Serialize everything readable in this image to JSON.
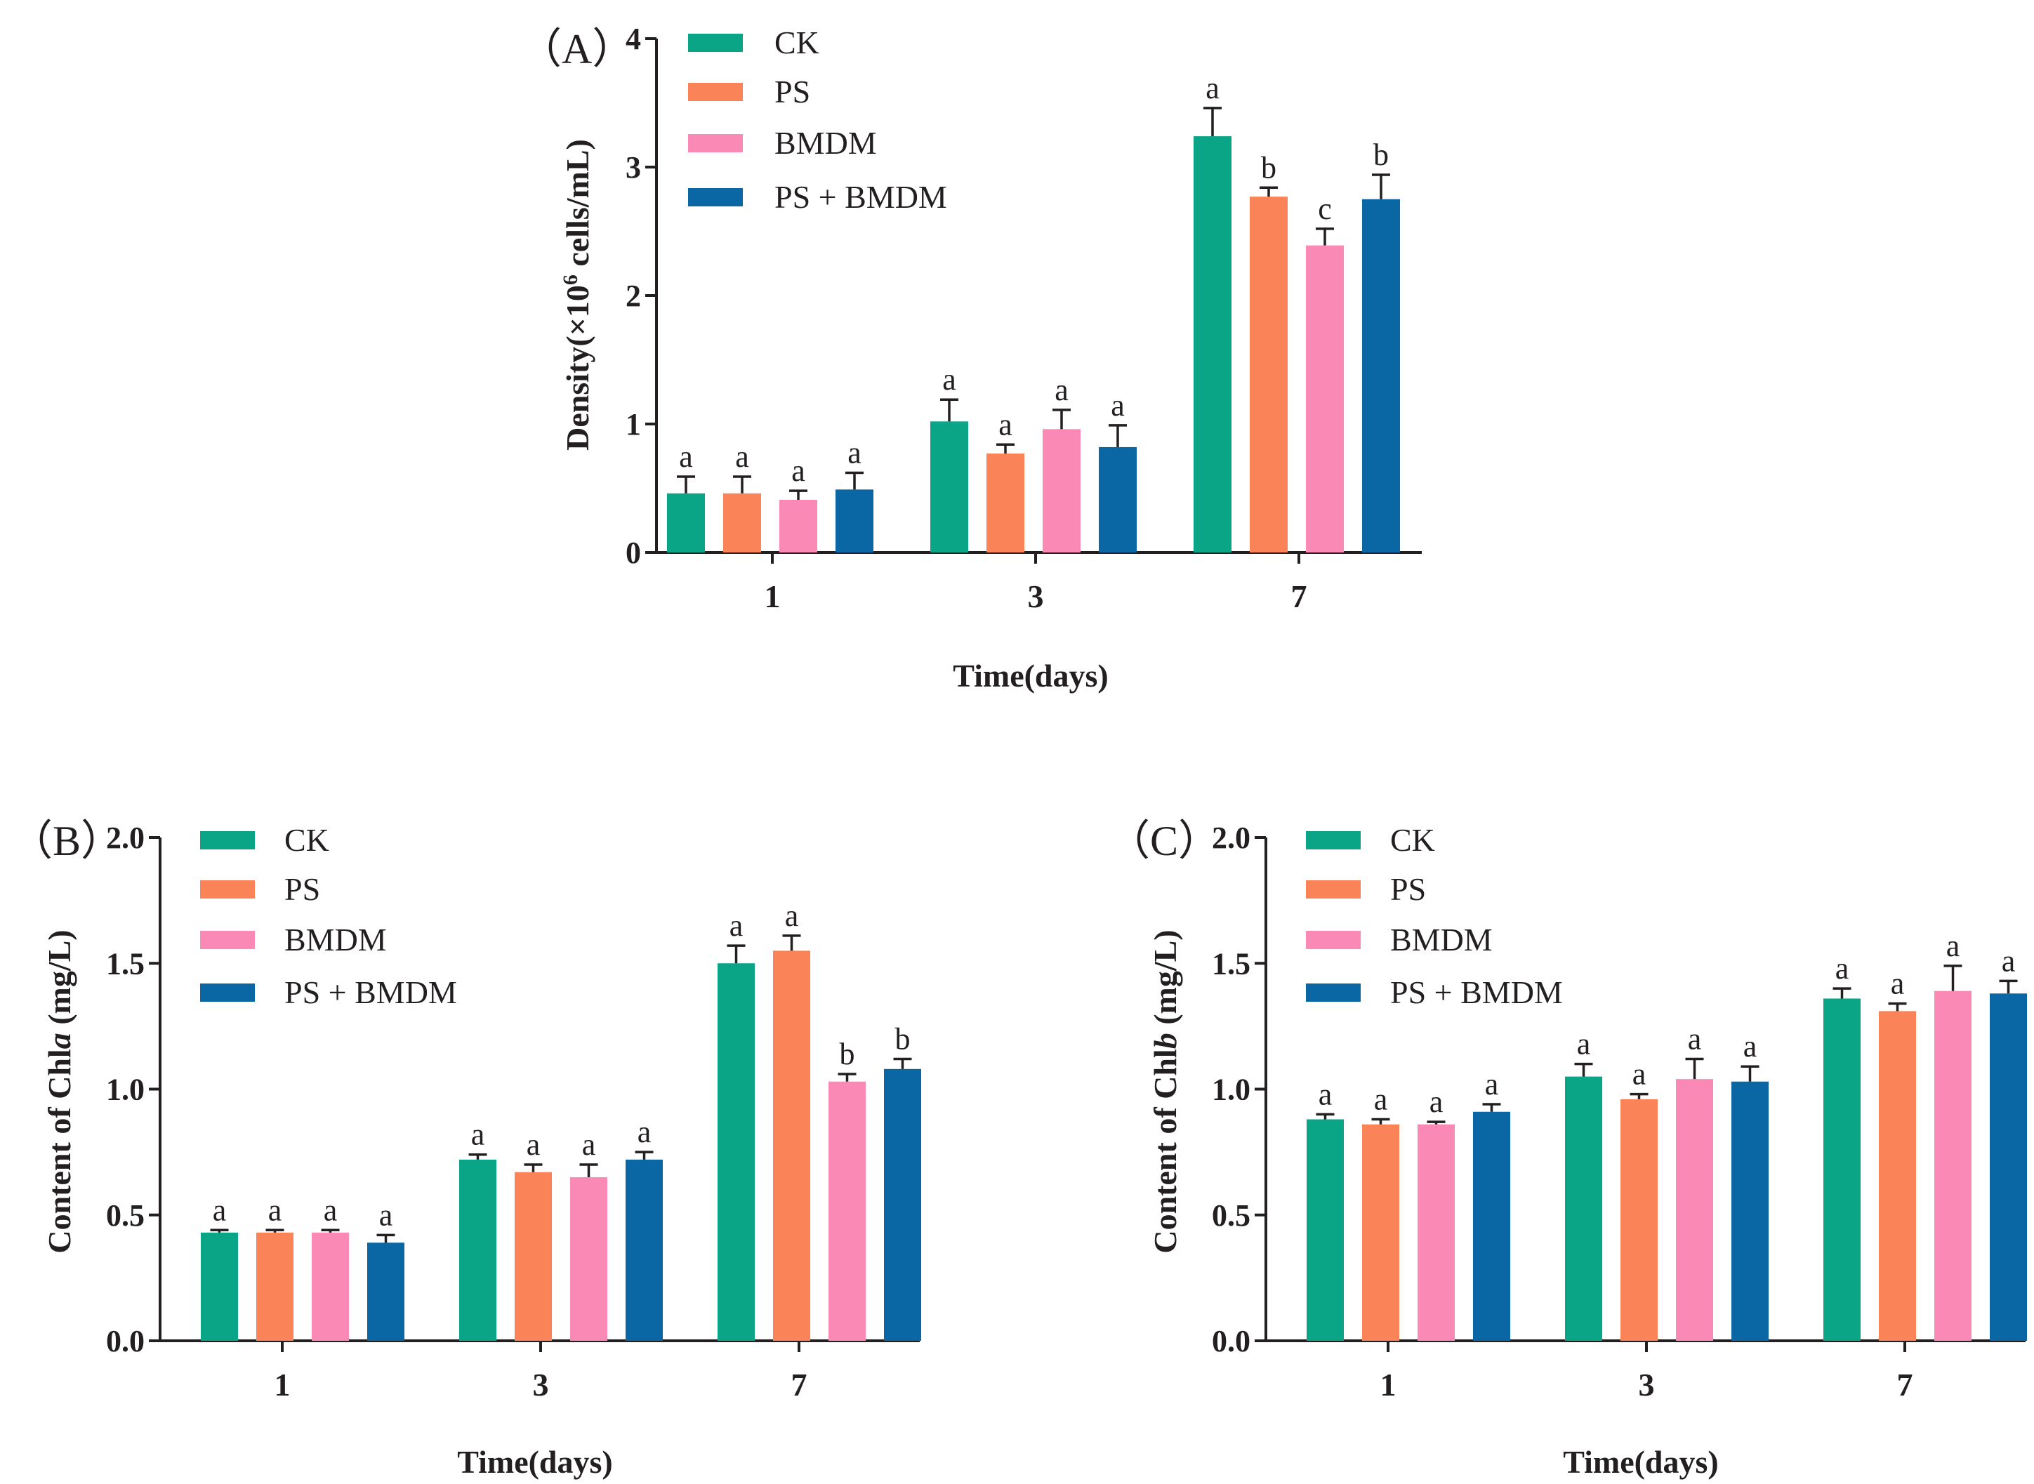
{
  "figure": {
    "series_colors": {
      "CK": "#0aa587",
      "PS": "#fa8358",
      "BMDM": "#fb89b5",
      "PS + BMDM": "#0a67a3"
    }
  },
  "chart_data": [
    {
      "id": "A",
      "type": "bar",
      "panel_label": "（A）",
      "categories": [
        "1",
        "3",
        "7"
      ],
      "xlabel": "Time(days)",
      "ylabel_parts": [
        "Density(×10",
        "6",
        " cells/mL)"
      ],
      "ylim": [
        0,
        4
      ],
      "yticks": [
        "0",
        "1",
        "2",
        "3",
        "4"
      ],
      "legend": [
        "CK",
        "PS",
        "BMDM",
        "PS + BMDM"
      ],
      "legend_position": "top-left",
      "series": [
        {
          "name": "CK",
          "values": [
            0.46,
            1.02,
            3.24
          ],
          "errors": [
            0.13,
            0.17,
            0.22
          ],
          "labels": [
            "a",
            "a",
            "a"
          ]
        },
        {
          "name": "PS",
          "values": [
            0.46,
            0.77,
            2.77
          ],
          "errors": [
            0.13,
            0.07,
            0.07
          ],
          "labels": [
            "a",
            "a",
            "b"
          ]
        },
        {
          "name": "BMDM",
          "values": [
            0.41,
            0.96,
            2.39
          ],
          "errors": [
            0.07,
            0.15,
            0.13
          ],
          "labels": [
            "a",
            "a",
            "c"
          ]
        },
        {
          "name": "PS + BMDM",
          "values": [
            0.49,
            0.82,
            2.75
          ],
          "errors": [
            0.13,
            0.17,
            0.19
          ],
          "labels": [
            "a",
            "a",
            "b"
          ]
        }
      ]
    },
    {
      "id": "B",
      "type": "bar",
      "panel_label": "（B）",
      "categories": [
        "1",
        "3",
        "7"
      ],
      "xlabel": "Time(days)",
      "ylabel_parts": [
        "Content of Chl",
        "a",
        " (mg/L)"
      ],
      "ylim": [
        0,
        2
      ],
      "yticks": [
        "0.0",
        "0.5",
        "1.0",
        "1.5",
        "2.0"
      ],
      "legend": [
        "CK",
        "PS",
        "BMDM",
        "PS + BMDM"
      ],
      "legend_position": "top-left",
      "series": [
        {
          "name": "CK",
          "values": [
            0.43,
            0.72,
            1.5
          ],
          "errors": [
            0.01,
            0.02,
            0.07
          ],
          "labels": [
            "a",
            "a",
            "a"
          ]
        },
        {
          "name": "PS",
          "values": [
            0.43,
            0.67,
            1.55
          ],
          "errors": [
            0.01,
            0.03,
            0.06
          ],
          "labels": [
            "a",
            "a",
            "a"
          ]
        },
        {
          "name": "BMDM",
          "values": [
            0.43,
            0.65,
            1.03
          ],
          "errors": [
            0.01,
            0.05,
            0.03
          ],
          "labels": [
            "a",
            "a",
            "b"
          ]
        },
        {
          "name": "PS + BMDM",
          "values": [
            0.39,
            0.72,
            1.08
          ],
          "errors": [
            0.03,
            0.03,
            0.04
          ],
          "labels": [
            "a",
            "a",
            "b"
          ]
        }
      ]
    },
    {
      "id": "C",
      "type": "bar",
      "panel_label": "（C）",
      "categories": [
        "1",
        "3",
        "7"
      ],
      "xlabel": "Time(days)",
      "ylabel_parts": [
        "Content of Chl",
        "b",
        " (mg/L)"
      ],
      "ylim": [
        0,
        2
      ],
      "yticks": [
        "0.0",
        "0.5",
        "1.0",
        "1.5",
        "2.0"
      ],
      "legend": [
        "CK",
        "PS",
        "BMDM",
        "PS + BMDM"
      ],
      "legend_position": "top-left",
      "series": [
        {
          "name": "CK",
          "values": [
            0.88,
            1.05,
            1.36
          ],
          "errors": [
            0.02,
            0.05,
            0.04
          ],
          "labels": [
            "a",
            "a",
            "a"
          ]
        },
        {
          "name": "PS",
          "values": [
            0.86,
            0.96,
            1.31
          ],
          "errors": [
            0.02,
            0.02,
            0.03
          ],
          "labels": [
            "a",
            "a",
            "a"
          ]
        },
        {
          "name": "BMDM",
          "values": [
            0.86,
            1.04,
            1.39
          ],
          "errors": [
            0.01,
            0.08,
            0.1
          ],
          "labels": [
            "a",
            "a",
            "a"
          ]
        },
        {
          "name": "PS + BMDM",
          "values": [
            0.91,
            1.03,
            1.38
          ],
          "errors": [
            0.03,
            0.06,
            0.05
          ],
          "labels": [
            "a",
            "a",
            "a"
          ]
        }
      ]
    }
  ]
}
